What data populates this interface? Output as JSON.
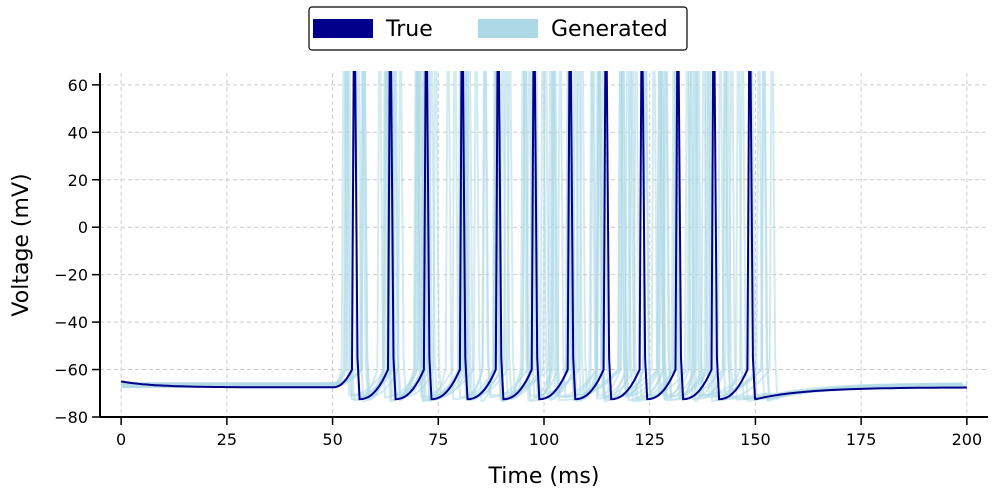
{
  "chart_data": {
    "type": "line",
    "title": "",
    "xlabel": "Time (ms)",
    "ylabel": "Voltage (mV)",
    "xlim": [
      -5,
      205
    ],
    "ylim": [
      -80,
      65
    ],
    "xticks": [
      0,
      25,
      50,
      75,
      100,
      125,
      150,
      175,
      200
    ],
    "yticks": [
      -80,
      -60,
      -40,
      -20,
      0,
      20,
      40,
      60
    ],
    "xtick_labels": [
      "0",
      "25",
      "50",
      "75",
      "100",
      "125",
      "150",
      "175",
      "200"
    ],
    "ytick_labels": [
      "−80",
      "−60",
      "−40",
      "−20",
      "0",
      "20",
      "40",
      "60"
    ],
    "grid": true,
    "legend_position": "top-center",
    "series": [
      {
        "name": "True",
        "color": "#00008b",
        "stimulus_on": 50,
        "stimulus_off": 150,
        "rest_start_mV": -65,
        "rest_mV": -67.5,
        "trough_mV": -72.5,
        "post_rest_mV": -67.5,
        "spike_times": [
          55,
          63.5,
          72,
          80.5,
          89,
          97.5,
          106,
          114.5,
          123,
          131.5,
          140,
          148.5
        ]
      },
      {
        "name": "Generated",
        "color": "#add8e6",
        "stimulus_on": 50,
        "stimulus_off": 153,
        "rest_mV": -66.5,
        "trough_mV": -72,
        "trace_count": 10,
        "spike_time_jitter_ms": 2.5
      }
    ]
  }
}
